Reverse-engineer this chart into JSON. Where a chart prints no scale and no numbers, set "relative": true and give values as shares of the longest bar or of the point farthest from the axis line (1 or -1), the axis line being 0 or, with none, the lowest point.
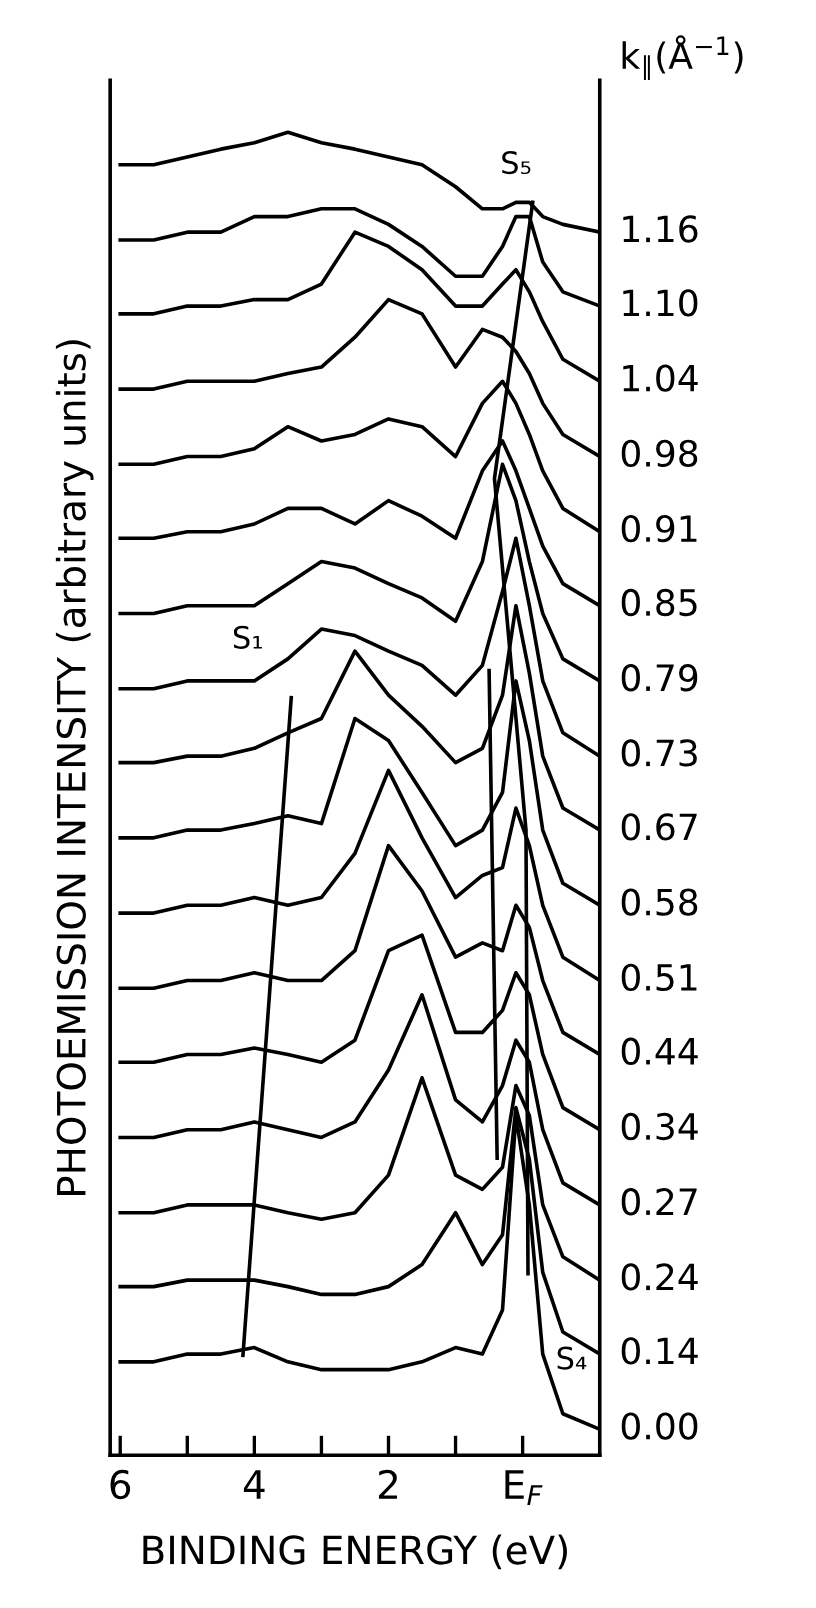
{
  "chart_data": {
    "type": "line",
    "relative": true,
    "xlabel": "BINDING ENERGY (eV)",
    "ylabel": "PHOTOEMISSION INTENSITY (arbitrary units)",
    "legend_title": "k$_{∥}$(Å$^{−1}$)",
    "xlim": [
      6.15,
      -1.15
    ],
    "xticks": [
      6,
      {
        "value": 5,
        "label": null
      },
      4,
      {
        "value": 3,
        "label": null
      },
      2,
      {
        "value": 1,
        "label": null
      },
      {
        "value": 0,
        "label": "E$_{F}$"
      }
    ],
    "x": [
      6.0,
      5.5,
      5.0,
      4.5,
      4.0,
      3.5,
      3.0,
      2.5,
      2.0,
      1.5,
      1.0,
      0.6,
      0.3,
      0.1,
      -0.1,
      -0.3,
      -0.6,
      -1.15
    ],
    "grid": false,
    "legend": false,
    "marker": "none",
    "line_style": "solid",
    "series": [
      {
        "name": "0.00",
        "color": "#000000",
        "values": [
          0.052,
          0.052,
          0.058,
          0.058,
          0.063,
          0.052,
          0.046,
          0.046,
          0.046,
          0.052,
          0.063,
          0.058,
          0.092,
          0.242,
          0.173,
          0.058,
          0.012,
          0.0
        ]
      },
      {
        "name": "0.14",
        "color": "#000000",
        "values": [
          0.11,
          0.11,
          0.115,
          0.115,
          0.115,
          0.11,
          0.104,
          0.104,
          0.11,
          0.127,
          0.167,
          0.127,
          0.15,
          0.248,
          0.208,
          0.121,
          0.075,
          0.058
        ]
      },
      {
        "name": "0.24",
        "color": "#000000",
        "values": [
          0.167,
          0.167,
          0.173,
          0.173,
          0.173,
          0.167,
          0.162,
          0.167,
          0.196,
          0.271,
          0.196,
          0.185,
          0.202,
          0.265,
          0.242,
          0.173,
          0.133,
          0.115
        ]
      },
      {
        "name": "0.27",
        "color": "#000000",
        "values": [
          0.225,
          0.225,
          0.231,
          0.231,
          0.237,
          0.231,
          0.225,
          0.237,
          0.277,
          0.335,
          0.254,
          0.237,
          0.265,
          0.3,
          0.283,
          0.231,
          0.19,
          0.173
        ]
      },
      {
        "name": "0.34",
        "color": "#000000",
        "values": [
          0.283,
          0.283,
          0.289,
          0.289,
          0.294,
          0.289,
          0.283,
          0.3,
          0.369,
          0.381,
          0.306,
          0.306,
          0.323,
          0.352,
          0.335,
          0.289,
          0.248,
          0.231
        ]
      },
      {
        "name": "0.44",
        "color": "#000000",
        "values": [
          0.34,
          0.34,
          0.346,
          0.346,
          0.352,
          0.346,
          0.346,
          0.369,
          0.45,
          0.415,
          0.364,
          0.375,
          0.369,
          0.404,
          0.387,
          0.346,
          0.306,
          0.289
        ]
      },
      {
        "name": "0.51",
        "color": "#000000",
        "values": [
          0.398,
          0.398,
          0.404,
          0.404,
          0.41,
          0.404,
          0.41,
          0.444,
          0.508,
          0.456,
          0.41,
          0.427,
          0.433,
          0.479,
          0.45,
          0.404,
          0.364,
          0.346
        ]
      },
      {
        "name": "0.58",
        "color": "#000000",
        "values": [
          0.456,
          0.456,
          0.462,
          0.462,
          0.467,
          0.473,
          0.467,
          0.548,
          0.531,
          0.491,
          0.45,
          0.462,
          0.491,
          0.577,
          0.531,
          0.462,
          0.421,
          0.404
        ]
      },
      {
        "name": "0.67",
        "color": "#000000",
        "values": [
          0.514,
          0.514,
          0.519,
          0.519,
          0.525,
          0.537,
          0.548,
          0.6,
          0.566,
          0.542,
          0.514,
          0.525,
          0.566,
          0.635,
          0.583,
          0.519,
          0.479,
          0.462
        ]
      },
      {
        "name": "0.73",
        "color": "#000000",
        "values": [
          0.571,
          0.571,
          0.577,
          0.577,
          0.577,
          0.594,
          0.617,
          0.612,
          0.6,
          0.589,
          0.566,
          0.589,
          0.646,
          0.687,
          0.635,
          0.577,
          0.537,
          0.519
        ]
      },
      {
        "name": "0.79",
        "color": "#000000",
        "values": [
          0.629,
          0.629,
          0.635,
          0.635,
          0.635,
          0.652,
          0.669,
          0.664,
          0.652,
          0.641,
          0.623,
          0.669,
          0.744,
          0.716,
          0.669,
          0.629,
          0.594,
          0.577
        ]
      },
      {
        "name": "0.85",
        "color": "#000000",
        "values": [
          0.687,
          0.687,
          0.692,
          0.692,
          0.698,
          0.71,
          0.71,
          0.698,
          0.716,
          0.704,
          0.687,
          0.739,
          0.762,
          0.739,
          0.71,
          0.681,
          0.652,
          0.635
        ]
      },
      {
        "name": "0.91",
        "color": "#000000",
        "values": [
          0.744,
          0.744,
          0.75,
          0.75,
          0.756,
          0.773,
          0.762,
          0.767,
          0.779,
          0.773,
          0.75,
          0.791,
          0.808,
          0.791,
          0.767,
          0.739,
          0.71,
          0.692
        ]
      },
      {
        "name": "0.98",
        "color": "#000000",
        "values": [
          0.802,
          0.802,
          0.808,
          0.808,
          0.808,
          0.814,
          0.819,
          0.842,
          0.871,
          0.86,
          0.819,
          0.848,
          0.842,
          0.831,
          0.814,
          0.791,
          0.767,
          0.75
        ]
      },
      {
        "name": "1.04",
        "color": "#000000",
        "values": [
          0.86,
          0.86,
          0.866,
          0.866,
          0.871,
          0.871,
          0.883,
          0.923,
          0.912,
          0.894,
          0.866,
          0.866,
          0.883,
          0.894,
          0.877,
          0.854,
          0.825,
          0.808
        ]
      },
      {
        "name": "1.10",
        "color": "#000000",
        "values": [
          0.917,
          0.917,
          0.923,
          0.923,
          0.935,
          0.935,
          0.941,
          0.941,
          0.929,
          0.912,
          0.889,
          0.889,
          0.912,
          0.935,
          0.935,
          0.9,
          0.877,
          0.866
        ]
      },
      {
        "name": "1.16",
        "color": "#000000",
        "values": [
          0.975,
          0.975,
          0.981,
          0.987,
          0.992,
          1.0,
          0.992,
          0.987,
          0.981,
          0.975,
          0.958,
          0.941,
          0.941,
          0.946,
          0.946,
          0.935,
          0.929,
          0.923
        ]
      },
      {
        "color": "#000000",
        "x": [
          4.17,
          3.45
        ],
        "values": [
          0.057,
          0.564
        ]
      },
      {
        "color": "#000000",
        "x": [
          0.5,
          0.38
        ],
        "values": [
          0.585,
          0.209
        ]
      },
      {
        "color": "#000000",
        "x": [
          -0.15,
          0.42,
          -0.05,
          -0.08
        ],
        "values": [
          0.946,
          0.733,
          0.462,
          0.12
        ]
      }
    ],
    "annotations": [
      {
        "text": "S₁",
        "x": 3.85,
        "y": 0.58
      },
      {
        "text": "S₅",
        "x": -0.15,
        "y": 0.946
      },
      {
        "text": "S₄",
        "x": -0.45,
        "y": 0.035
      }
    ]
  }
}
